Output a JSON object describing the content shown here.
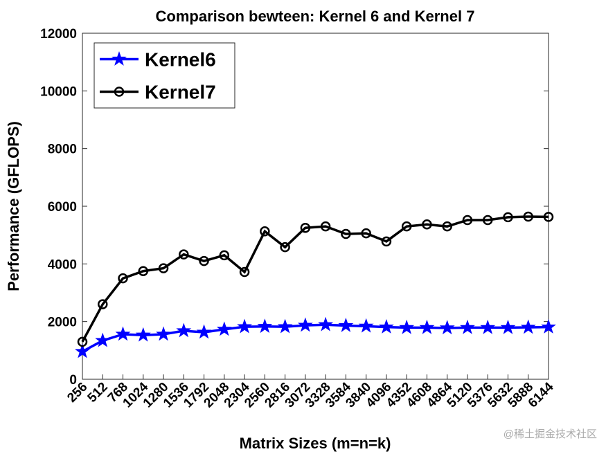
{
  "chart_data": {
    "type": "line",
    "title": "Comparison bewteen: Kernel 6 and Kernel 7",
    "x_label": "Matrix Sizes (m=n=k)",
    "y_label": "Performance (GFLOPS)",
    "categories": [
      "256",
      "512",
      "768",
      "1024",
      "1280",
      "1536",
      "1792",
      "2048",
      "2304",
      "2560",
      "2816",
      "3072",
      "3328",
      "3584",
      "3840",
      "4096",
      "4352",
      "4608",
      "4864",
      "5120",
      "5376",
      "5632",
      "5888",
      "6144"
    ],
    "series": [
      {
        "name": "Kernel6",
        "color": "#0000ff",
        "marker": "star",
        "values": [
          960,
          1340,
          1560,
          1530,
          1560,
          1680,
          1630,
          1730,
          1820,
          1830,
          1820,
          1870,
          1890,
          1860,
          1840,
          1810,
          1790,
          1790,
          1780,
          1790,
          1790,
          1790,
          1800,
          1810
        ]
      },
      {
        "name": "Kernel7",
        "color": "#000000",
        "marker": "circle",
        "values": [
          1300,
          2600,
          3500,
          3750,
          3850,
          4330,
          4100,
          4300,
          3720,
          5130,
          4580,
          5250,
          5300,
          5040,
          5060,
          4780,
          5300,
          5370,
          5300,
          5520,
          5520,
          5620,
          5640,
          5630
        ]
      }
    ],
    "ylim": [
      0,
      12000
    ],
    "yticks": [
      0,
      2000,
      4000,
      6000,
      8000,
      10000,
      12000
    ],
    "grid": false,
    "legend": "upper-left",
    "watermark": "@稀土掘金技术社区"
  }
}
